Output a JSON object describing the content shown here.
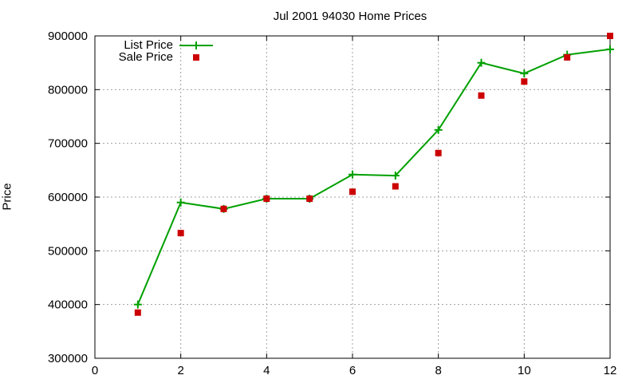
{
  "chart_data": {
    "type": "line",
    "title": "Jul 2001 94030 Home Prices",
    "xlabel": "",
    "ylabel": "Price",
    "xlim": [
      0,
      12
    ],
    "ylim": [
      300000,
      900000
    ],
    "x_ticks": [
      "0",
      "2",
      "4",
      "6",
      "8",
      "10",
      "12"
    ],
    "y_ticks": [
      "300000",
      "400000",
      "500000",
      "600000",
      "700000",
      "800000",
      "900000"
    ],
    "grid": true,
    "legend_position": "top-left",
    "x": [
      1,
      2,
      3,
      4,
      5,
      6,
      7,
      8,
      9,
      10,
      11,
      12
    ],
    "series": [
      {
        "name": "List Price",
        "style": "line+cross",
        "color": "#00a000",
        "values": [
          400000,
          590000,
          578000,
          597000,
          597000,
          642000,
          640000,
          725000,
          850000,
          830000,
          865000,
          875000
        ]
      },
      {
        "name": "Sale Price",
        "style": "square-points",
        "color": "#cc0000",
        "values": [
          385000,
          533000,
          578000,
          597000,
          597000,
          610000,
          620000,
          682000,
          789000,
          815000,
          860000,
          900000
        ]
      }
    ]
  }
}
